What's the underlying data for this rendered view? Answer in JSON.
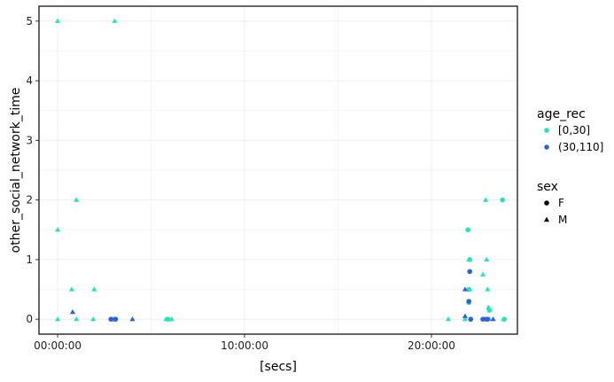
{
  "chart_data": {
    "type": "scatter",
    "title": "",
    "xlabel": "[secs]",
    "ylabel": "other_social_network_time",
    "x_unit": "hours",
    "xlim": [
      -1,
      24.6
    ],
    "ylim": [
      -0.25,
      5.25
    ],
    "grid": true,
    "x_ticks": [
      {
        "value": 0,
        "label": "00:00:00"
      },
      {
        "value": 10,
        "label": "10:00:00"
      },
      {
        "value": 20,
        "label": "20:00:00"
      }
    ],
    "y_ticks": [
      {
        "value": 0,
        "label": "0"
      },
      {
        "value": 1,
        "label": "1"
      },
      {
        "value": 2,
        "label": "2"
      },
      {
        "value": 3,
        "label": "3"
      },
      {
        "value": 4,
        "label": "4"
      },
      {
        "value": 5,
        "label": "5"
      }
    ],
    "legend_placement": "right",
    "colors": {
      "young": "#1de9b6",
      "old": "#2f5fe0",
      "frame": "#000000",
      "grid": "#ebebeb"
    },
    "legends": [
      {
        "title": "age_rec",
        "entries": [
          {
            "label": "[0,30]",
            "color": "#1de9b6",
            "shape": "circle"
          },
          {
            "label": "(30,110]",
            "color": "#2f5fe0",
            "shape": "circle"
          }
        ]
      },
      {
        "title": "sex",
        "entries": [
          {
            "label": "F",
            "color": "#000000",
            "shape": "circle"
          },
          {
            "label": "M",
            "color": "#000000",
            "shape": "triangle"
          }
        ]
      }
    ],
    "series": [
      {
        "age": "[0,30]",
        "sex": "F",
        "color": "#1de9b6",
        "shape": "circle",
        "points": [
          [
            3.0,
            0
          ],
          [
            5.9,
            0
          ],
          [
            21.95,
            1.5
          ],
          [
            22.05,
            1.0
          ],
          [
            22.0,
            0.5
          ],
          [
            22.0,
            0.28
          ],
          [
            22.1,
            0
          ],
          [
            23.1,
            0.15
          ],
          [
            22.9,
            0
          ],
          [
            23.8,
            2.0
          ],
          [
            23.9,
            0
          ]
        ]
      },
      {
        "age": "[0,30]",
        "sex": "M",
        "color": "#1de9b6",
        "shape": "triangle",
        "points": [
          [
            0,
            5.0
          ],
          [
            3.05,
            5.0
          ],
          [
            0,
            1.5
          ],
          [
            1.0,
            2.0
          ],
          [
            0.75,
            0.5
          ],
          [
            1.95,
            0.5
          ],
          [
            0,
            0
          ],
          [
            1.0,
            0
          ],
          [
            1.9,
            0
          ],
          [
            5.8,
            0
          ],
          [
            6.1,
            0
          ],
          [
            20.9,
            0
          ],
          [
            21.8,
            0
          ],
          [
            22.05,
            0.5
          ],
          [
            22.0,
            1.0
          ],
          [
            22.9,
            2.0
          ],
          [
            22.95,
            1.0
          ],
          [
            22.75,
            0.75
          ],
          [
            23.0,
            0.5
          ],
          [
            23.05,
            0.2
          ],
          [
            23.1,
            0
          ],
          [
            23.85,
            0
          ]
        ]
      },
      {
        "age": "(30,110]",
        "sex": "F",
        "color": "#2f5fe0",
        "shape": "circle",
        "points": [
          [
            2.85,
            0
          ],
          [
            3.1,
            0
          ],
          [
            22.05,
            0.8
          ],
          [
            22.0,
            0.3
          ],
          [
            22.1,
            0
          ],
          [
            22.75,
            0
          ],
          [
            23.0,
            0
          ]
        ]
      },
      {
        "age": "(30,110]",
        "sex": "M",
        "color": "#2f5fe0",
        "shape": "triangle",
        "points": [
          [
            0.8,
            0.12
          ],
          [
            4.0,
            0
          ],
          [
            21.8,
            0.5
          ],
          [
            21.8,
            0.05
          ],
          [
            22.85,
            0
          ],
          [
            23.3,
            0
          ]
        ]
      }
    ]
  }
}
